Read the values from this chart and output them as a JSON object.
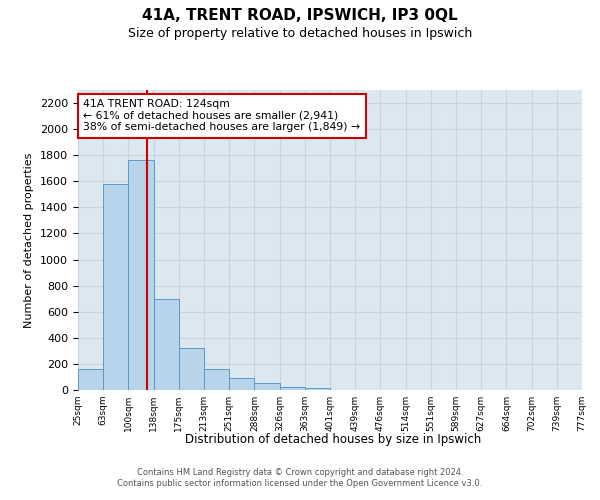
{
  "title": "41A, TRENT ROAD, IPSWICH, IP3 0QL",
  "subtitle": "Size of property relative to detached houses in Ipswich",
  "xlabel": "Distribution of detached houses by size in Ipswich",
  "ylabel": "Number of detached properties",
  "bin_labels": [
    "25sqm",
    "63sqm",
    "100sqm",
    "138sqm",
    "175sqm",
    "213sqm",
    "251sqm",
    "288sqm",
    "326sqm",
    "363sqm",
    "401sqm",
    "439sqm",
    "476sqm",
    "514sqm",
    "551sqm",
    "589sqm",
    "627sqm",
    "664sqm",
    "702sqm",
    "739sqm",
    "777sqm"
  ],
  "bar_heights": [
    160,
    1580,
    1760,
    700,
    320,
    160,
    90,
    50,
    25,
    15,
    0,
    0,
    0,
    0,
    0,
    0,
    0,
    0,
    0,
    0
  ],
  "bar_color": "#b8d4ea",
  "bar_edge_color": "#5a9ac8",
  "marker_bin": 2.75,
  "marker_color": "#cc0000",
  "ylim": [
    0,
    2300
  ],
  "yticks": [
    0,
    200,
    400,
    600,
    800,
    1000,
    1200,
    1400,
    1600,
    1800,
    2000,
    2200
  ],
  "annotation_title": "41A TRENT ROAD: 124sqm",
  "annotation_line1": "← 61% of detached houses are smaller (2,941)",
  "annotation_line2": "38% of semi-detached houses are larger (1,849) →",
  "annotation_box_color": "#ffffff",
  "annotation_box_edge": "#cc0000",
  "footer_line1": "Contains HM Land Registry data © Crown copyright and database right 2024.",
  "footer_line2": "Contains public sector information licensed under the Open Government Licence v3.0.",
  "grid_color": "#c8d4e4",
  "background_color": "#dce8f0"
}
